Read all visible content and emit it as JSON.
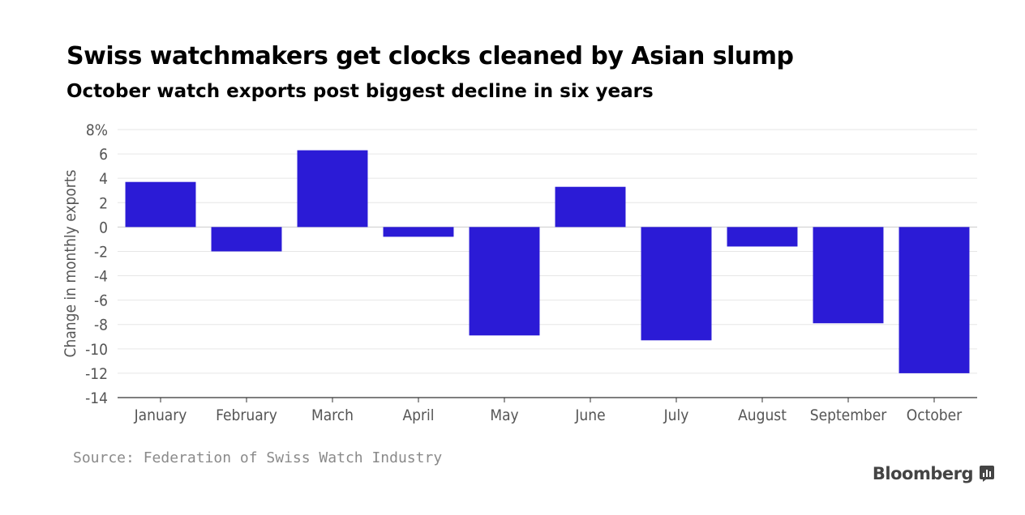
{
  "header": {
    "title": "Swiss watchmakers get clocks cleaned by Asian slump",
    "subtitle": "October watch exports post biggest decline in six years"
  },
  "footer": {
    "source": "Source: Federation of Swiss Watch Industry",
    "brand": "Bloomberg",
    "brand_icon": "bloomberg-terminal-icon"
  },
  "colors": {
    "bar": "#2b1bd6",
    "grid": "#e6e6e6",
    "axis": "#333333",
    "tick_label": "#555555"
  },
  "chart_data": {
    "type": "bar",
    "title": "Swiss watchmakers get clocks cleaned by Asian slump",
    "subtitle": "October watch exports post biggest decline in six years",
    "xlabel": "",
    "ylabel": "Change in monthly exports",
    "categories": [
      "January",
      "February",
      "March",
      "April",
      "May",
      "June",
      "July",
      "August",
      "September",
      "October"
    ],
    "values": [
      3.7,
      -2.0,
      6.3,
      -0.8,
      -8.9,
      3.3,
      -9.3,
      -1.6,
      -7.9,
      -12.0
    ],
    "ylim": [
      -14,
      8
    ],
    "yticks": [
      8,
      6,
      4,
      2,
      0,
      -2,
      -4,
      -6,
      -8,
      -10,
      -12,
      -14
    ],
    "ytick_labels": [
      "8%",
      "6",
      "4",
      "2",
      "0",
      "-2",
      "-4",
      "-6",
      "-8",
      "-10",
      "-12",
      "-14"
    ],
    "grid": true,
    "legend": "none"
  }
}
